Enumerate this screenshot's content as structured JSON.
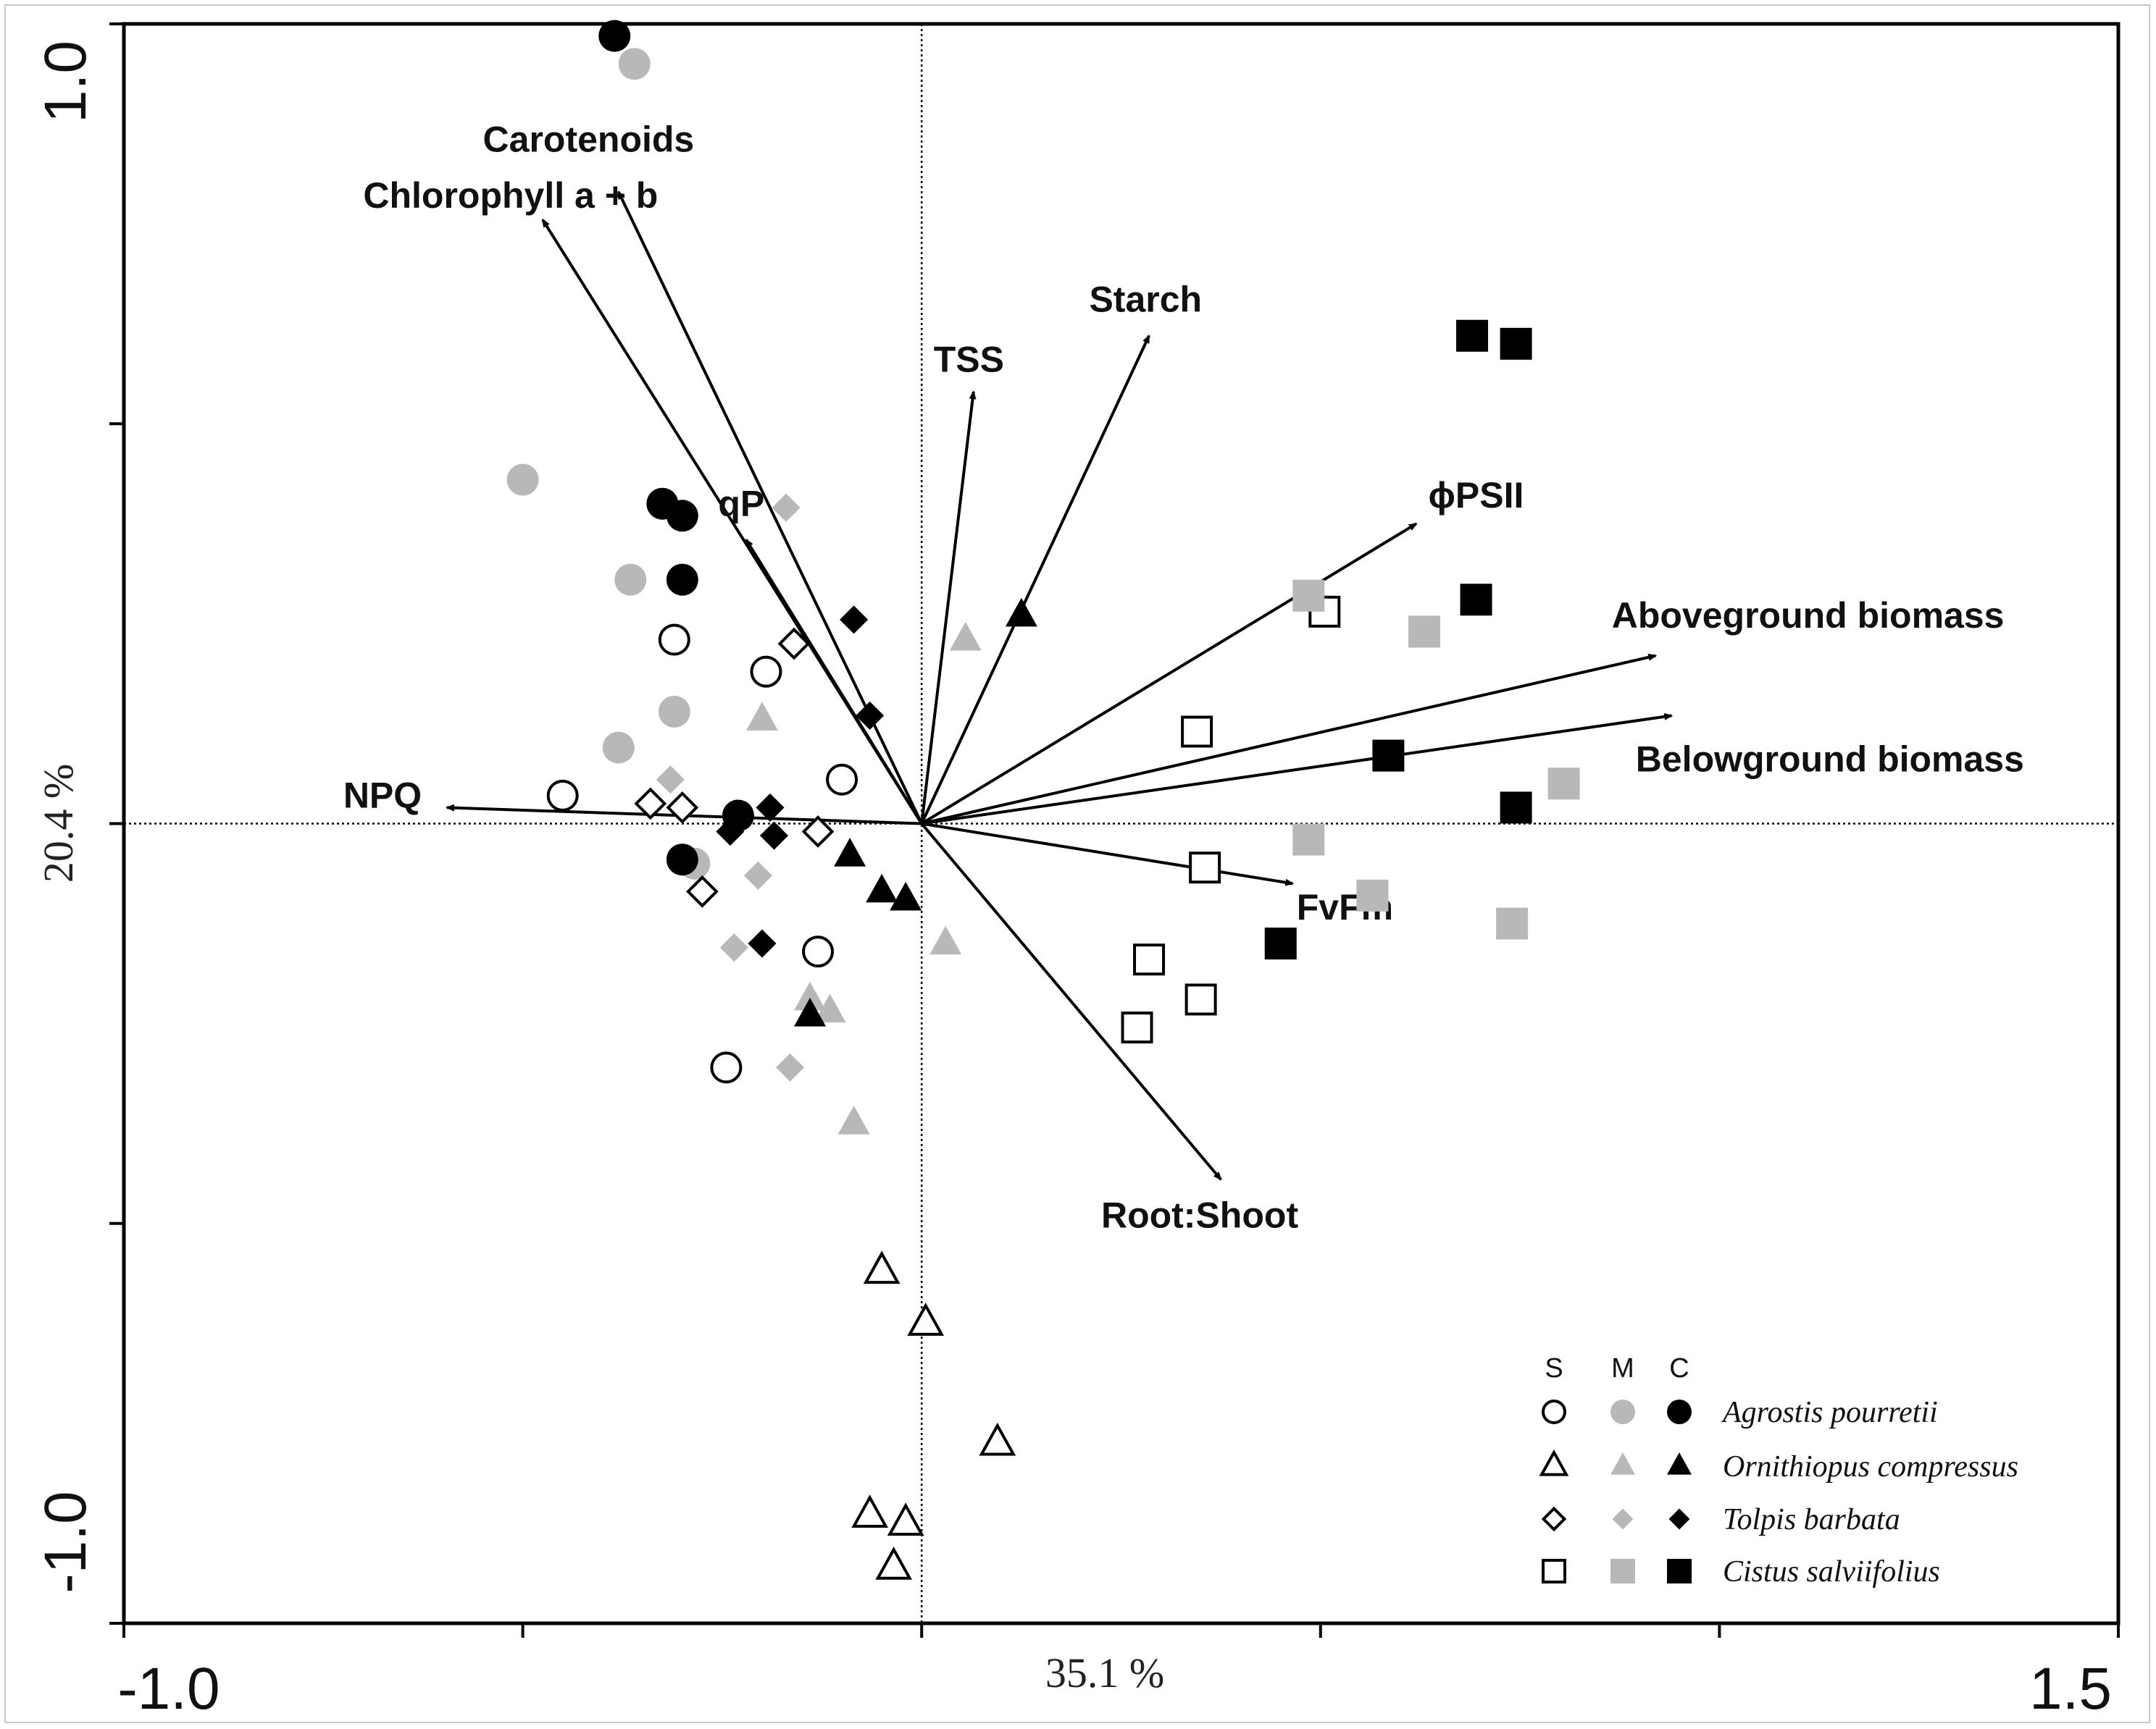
{
  "chart_data": {
    "type": "scatter",
    "subtype": "biplot",
    "xlabel": "35.1 %",
    "ylabel": "20.4 %",
    "xlim": [
      -1.0,
      1.5
    ],
    "ylim": [
      -1.0,
      1.0
    ],
    "tick_labels": {
      "x_min": "-1.0",
      "x_max": "1.5",
      "y_min": "-1.0",
      "y_max": "1.0"
    },
    "x_ticks": [
      -1.0,
      -0.5,
      0.0,
      0.5,
      1.0,
      1.5
    ],
    "y_ticks": [
      -1.0,
      -0.5,
      0.0,
      0.5,
      1.0
    ],
    "vectors": [
      {
        "label": "Chlorophyll a + b",
        "x": -0.475,
        "y": 0.755
      },
      {
        "label": "Carotenoids",
        "x": -0.38,
        "y": 0.79
      },
      {
        "label": "TSS",
        "x": 0.065,
        "y": 0.54
      },
      {
        "label": "Starch",
        "x": 0.285,
        "y": 0.61
      },
      {
        "label": "ϕPSII",
        "x": 0.62,
        "y": 0.375
      },
      {
        "label": "Aboveground biomass",
        "x": 0.92,
        "y": 0.21
      },
      {
        "label": "Belowground biomass",
        "x": 0.94,
        "y": 0.135
      },
      {
        "label": "FvFm",
        "x": 0.465,
        "y": -0.075
      },
      {
        "label": "Root:Shoot",
        "x": 0.375,
        "y": -0.445
      },
      {
        "label": "NPQ",
        "x": -0.595,
        "y": 0.02
      },
      {
        "label": "qP",
        "x": -0.22,
        "y": 0.355
      }
    ],
    "series": [
      {
        "name": "Agrostis pourretii S",
        "species": "Agrostis pourretii",
        "treatment": "S",
        "marker": "circle",
        "fill": "open",
        "points": [
          [
            -0.31,
            0.23
          ],
          [
            -0.195,
            0.19
          ],
          [
            -0.45,
            0.035
          ],
          [
            -0.1,
            0.055
          ],
          [
            -0.13,
            -0.16
          ],
          [
            -0.245,
            -0.305
          ]
        ]
      },
      {
        "name": "Agrostis pourretii M",
        "species": "Agrostis pourretii",
        "treatment": "M",
        "marker": "circle",
        "fill": "grey",
        "points": [
          [
            -0.36,
            0.95
          ],
          [
            -0.5,
            0.43
          ],
          [
            -0.365,
            0.305
          ],
          [
            -0.31,
            0.14
          ],
          [
            -0.38,
            0.095
          ],
          [
            -0.285,
            -0.05
          ]
        ]
      },
      {
        "name": "Agrostis pourretii C",
        "species": "Agrostis pourretii",
        "treatment": "C",
        "marker": "circle",
        "fill": "black",
        "points": [
          [
            -0.385,
            0.985
          ],
          [
            -0.325,
            0.4
          ],
          [
            -0.3,
            0.385
          ],
          [
            -0.3,
            0.305
          ],
          [
            -0.3,
            -0.045
          ],
          [
            -0.23,
            0.01
          ]
        ]
      },
      {
        "name": "Ornithiopus compressus S",
        "species": "Ornithiopus compressus",
        "treatment": "S",
        "marker": "triangle",
        "fill": "open",
        "points": [
          [
            -0.05,
            -0.56
          ],
          [
            0.005,
            -0.625
          ],
          [
            0.095,
            -0.775
          ],
          [
            -0.065,
            -0.865
          ],
          [
            -0.02,
            -0.875
          ],
          [
            -0.035,
            -0.93
          ]
        ]
      },
      {
        "name": "Ornithiopus compressus M",
        "species": "Ornithiopus compressus",
        "treatment": "M",
        "marker": "triangle",
        "fill": "grey",
        "points": [
          [
            0.055,
            0.23
          ],
          [
            -0.2,
            0.13
          ],
          [
            0.03,
            -0.15
          ],
          [
            -0.14,
            -0.22
          ],
          [
            -0.115,
            -0.235
          ],
          [
            -0.085,
            -0.375
          ]
        ]
      },
      {
        "name": "Ornithiopus compressus C",
        "species": "Ornithiopus compressus",
        "treatment": "C",
        "marker": "triangle",
        "fill": "black",
        "points": [
          [
            0.125,
            0.26
          ],
          [
            -0.09,
            -0.04
          ],
          [
            -0.05,
            -0.085
          ],
          [
            -0.02,
            -0.095
          ],
          [
            -0.14,
            -0.24
          ]
        ]
      },
      {
        "name": "Tolpis barbata S",
        "species": "Tolpis barbata",
        "treatment": "S",
        "marker": "diamond",
        "fill": "open",
        "points": [
          [
            -0.16,
            0.225
          ],
          [
            -0.34,
            0.025
          ],
          [
            -0.3,
            0.02
          ],
          [
            -0.13,
            -0.01
          ],
          [
            -0.275,
            -0.085
          ]
        ]
      },
      {
        "name": "Tolpis barbata M",
        "species": "Tolpis barbata",
        "treatment": "M",
        "marker": "diamond",
        "fill": "grey",
        "points": [
          [
            -0.17,
            0.395
          ],
          [
            -0.315,
            0.055
          ],
          [
            -0.205,
            -0.065
          ],
          [
            -0.235,
            -0.155
          ],
          [
            -0.165,
            -0.305
          ]
        ]
      },
      {
        "name": "Tolpis barbata C",
        "species": "Tolpis barbata",
        "treatment": "C",
        "marker": "diamond",
        "fill": "black",
        "points": [
          [
            -0.085,
            0.255
          ],
          [
            -0.065,
            0.135
          ],
          [
            -0.19,
            0.02
          ],
          [
            -0.24,
            -0.01
          ],
          [
            -0.185,
            -0.015
          ],
          [
            -0.2,
            -0.15
          ]
        ]
      },
      {
        "name": "Cistus salviifolius S",
        "species": "Cistus salviifolius",
        "treatment": "S",
        "marker": "square",
        "fill": "open",
        "points": [
          [
            0.505,
            0.265
          ],
          [
            0.345,
            0.115
          ],
          [
            0.355,
            -0.055
          ],
          [
            0.285,
            -0.17
          ],
          [
            0.35,
            -0.22
          ],
          [
            0.27,
            -0.255
          ]
        ]
      },
      {
        "name": "Cistus salviifolius M",
        "species": "Cistus salviifolius",
        "treatment": "M",
        "marker": "square",
        "fill": "grey",
        "points": [
          [
            0.485,
            0.285
          ],
          [
            0.63,
            0.24
          ],
          [
            0.805,
            0.05
          ],
          [
            0.485,
            -0.02
          ],
          [
            0.565,
            -0.09
          ],
          [
            0.74,
            -0.125
          ]
        ]
      },
      {
        "name": "Cistus salviifolius C",
        "species": "Cistus salviifolius",
        "treatment": "C",
        "marker": "square",
        "fill": "black",
        "points": [
          [
            0.69,
            0.61
          ],
          [
            0.745,
            0.6
          ],
          [
            0.695,
            0.28
          ],
          [
            0.585,
            0.085
          ],
          [
            0.745,
            0.02
          ],
          [
            0.45,
            -0.15
          ]
        ]
      }
    ],
    "legend": {
      "position": "bottom-right",
      "columns": [
        "S",
        "M",
        "C"
      ],
      "species": [
        "Agrostis pourretii",
        "Ornithiopus compressus",
        "Tolpis barbata",
        "Cistus salviifolius"
      ]
    },
    "colors": {
      "open": "#ffffff",
      "grey": "#b8b8b8",
      "black": "#000000"
    }
  }
}
